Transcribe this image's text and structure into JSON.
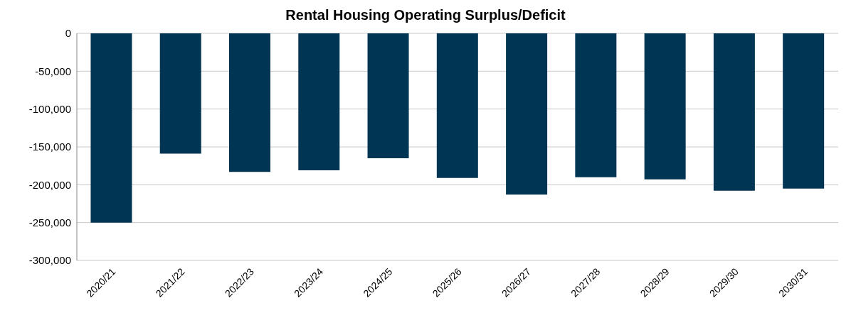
{
  "chart_data": {
    "type": "bar",
    "title": "Rental Housing Operating Surplus/Deficit",
    "categories": [
      "2020/21",
      "2021/22",
      "2022/23",
      "2023/24",
      "2024/25",
      "2025/26",
      "2026/27",
      "2027/28",
      "2028/29",
      "2029/30",
      "2030/31"
    ],
    "values": [
      -250000,
      -159000,
      -183000,
      -181000,
      -165000,
      -191000,
      -213000,
      -190000,
      -193000,
      -208000,
      -205000
    ],
    "color": "#003554",
    "ylim": [
      -300000,
      0
    ],
    "yticks": [
      {
        "value": -300000,
        "label": "-300,000"
      },
      {
        "value": -250000,
        "label": "-250,000"
      },
      {
        "value": -200000,
        "label": "-200,000"
      },
      {
        "value": -150000,
        "label": "-150,000"
      },
      {
        "value": -100000,
        "label": "-100,000"
      },
      {
        "value": -50000,
        "label": "-50,000"
      },
      0
    ],
    "grid": "y",
    "legend": false
  }
}
